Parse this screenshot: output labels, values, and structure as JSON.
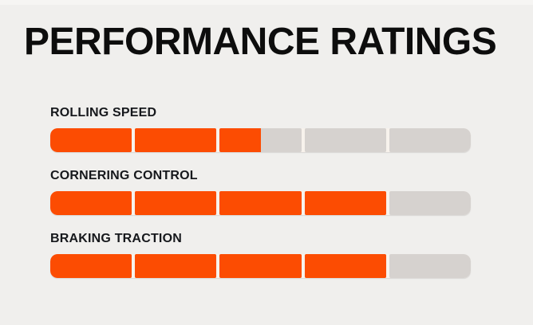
{
  "page": {
    "background": "#f0efed"
  },
  "header": {
    "title": "PERFORMANCE RATINGS"
  },
  "ratings": {
    "segments_total": 5,
    "colors": {
      "fill": "#fc4c02",
      "track": "#d6d2cf",
      "divider": "#f7f2ec",
      "title": "#0d0d0d",
      "label": "#16181c",
      "background": "#f0efed"
    },
    "items": [
      {
        "label": "ROLLING SPEED",
        "value": 2.5,
        "max": 5,
        "segment_fills_percent": [
          100,
          100,
          50,
          0,
          0
        ]
      },
      {
        "label": "CORNERING CONTROL",
        "value": 4,
        "max": 5,
        "segment_fills_percent": [
          100,
          100,
          100,
          100,
          0
        ]
      },
      {
        "label": "BRAKING TRACTION",
        "value": 4,
        "max": 5,
        "segment_fills_percent": [
          100,
          100,
          100,
          100,
          0
        ]
      }
    ]
  },
  "chart_data": {
    "type": "bar",
    "title": "PERFORMANCE RATINGS",
    "categories": [
      "ROLLING SPEED",
      "CORNERING CONTROL",
      "BRAKING TRACTION"
    ],
    "values": [
      2.5,
      4,
      4
    ],
    "xlabel": "",
    "ylabel": "",
    "value_range": [
      0,
      5
    ],
    "segments_per_bar": 5,
    "orientation": "horizontal",
    "grid": false,
    "legend": false
  }
}
